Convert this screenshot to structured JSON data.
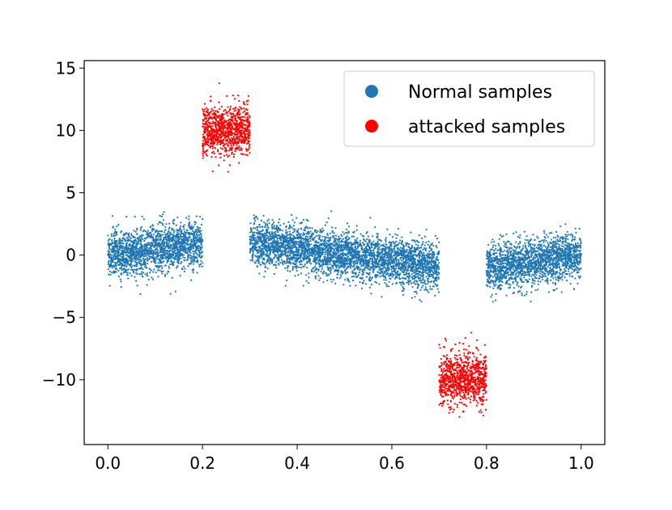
{
  "chart_data": {
    "type": "scatter",
    "title": "",
    "xlabel": "",
    "ylabel": "",
    "xlim": [
      -0.05,
      1.05
    ],
    "ylim": [
      -15.2,
      15.6
    ],
    "x_ticks": [
      0.0,
      0.2,
      0.4,
      0.6,
      0.8,
      1.0
    ],
    "x_tick_labels": [
      "0.0",
      "0.2",
      "0.4",
      "0.6",
      "0.8",
      "1.0"
    ],
    "y_ticks": [
      15,
      10,
      5,
      0,
      -5,
      -10
    ],
    "y_tick_labels": [
      "15",
      "10",
      "5",
      "0",
      "−5",
      "−10"
    ],
    "grid": false,
    "legend_position": "top-right",
    "series": [
      {
        "name": "Normal samples",
        "color": "#1f77b4",
        "segments": [
          {
            "x_range": [
              0.0,
              0.2
            ],
            "mean_start": 0.0,
            "mean_end": 1.0,
            "noise_sd": 0.9
          },
          {
            "x_range": [
              0.3,
              0.7
            ],
            "mean_start": 1.0,
            "mean_end": -1.0,
            "noise_sd": 0.9
          },
          {
            "x_range": [
              0.8,
              1.0
            ],
            "mean_start": -1.0,
            "mean_end": 0.0,
            "noise_sd": 0.9
          }
        ]
      },
      {
        "name": "attacked samples",
        "color": "#ff0000",
        "segments": [
          {
            "x_range": [
              0.2,
              0.3
            ],
            "mean_start": 10.0,
            "mean_end": 10.0,
            "noise_sd": 1.0
          },
          {
            "x_range": [
              0.7,
              0.8
            ],
            "mean_start": -10.0,
            "mean_end": -10.0,
            "noise_sd": 1.0
          }
        ]
      }
    ]
  }
}
